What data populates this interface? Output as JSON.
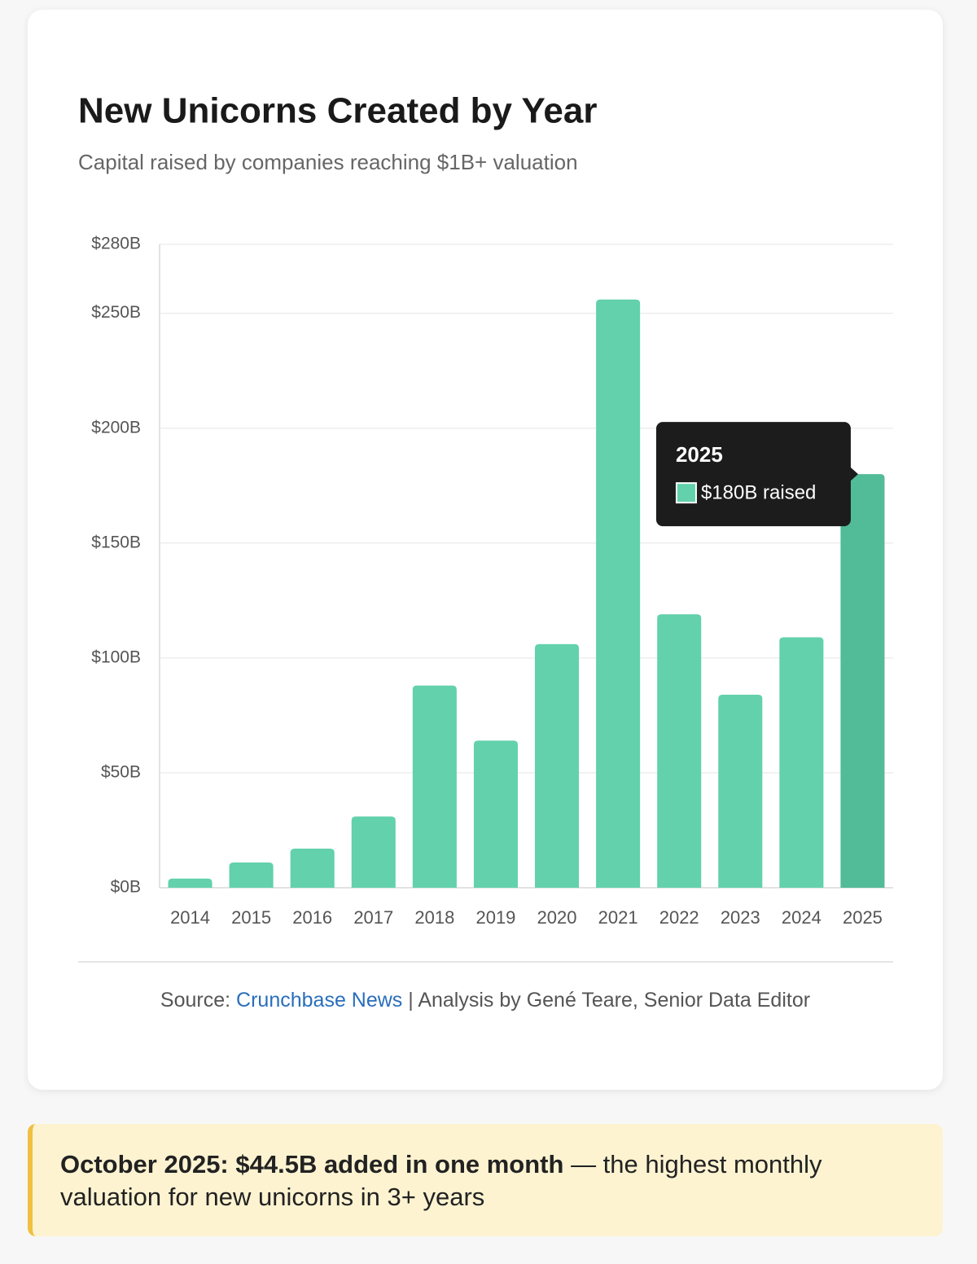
{
  "chart_data": {
    "type": "bar",
    "title": "New Unicorns Created by Year",
    "subtitle": "Capital raised by companies reaching $1B+ valuation",
    "categories": [
      "2014",
      "2015",
      "2016",
      "2017",
      "2018",
      "2019",
      "2020",
      "2021",
      "2022",
      "2023",
      "2024",
      "2025"
    ],
    "values": [
      4,
      11,
      17,
      31,
      88,
      64,
      106,
      256,
      119,
      84,
      109,
      180
    ],
    "value_labels": [
      null,
      null,
      null,
      null,
      null,
      null,
      null,
      null,
      null,
      null,
      null,
      "$180B raised"
    ],
    "color": "#62d1ac",
    "highlight_color": "#52bb98",
    "ylim": [
      0,
      280
    ],
    "yticks": [
      {
        "value": 0,
        "label": "$0B"
      },
      {
        "value": 50,
        "label": "$50B"
      },
      {
        "value": 100,
        "label": "$100B"
      },
      {
        "value": 150,
        "label": "$150B"
      },
      {
        "value": 200,
        "label": "$200B"
      },
      {
        "value": 250,
        "label": "$250B"
      },
      {
        "value": 280,
        "label": "$280B"
      }
    ],
    "grid": true
  },
  "footer": {
    "prefix": "Source:",
    "link": "Crunchbase News",
    "suffix": "| Analysis by Gené Teare, Senior Data Editor"
  },
  "callout": {
    "bold": "October 2025: $44.5B added in one month",
    "text": "— the highest monthly valuation for new unicorns in 3+ years"
  }
}
